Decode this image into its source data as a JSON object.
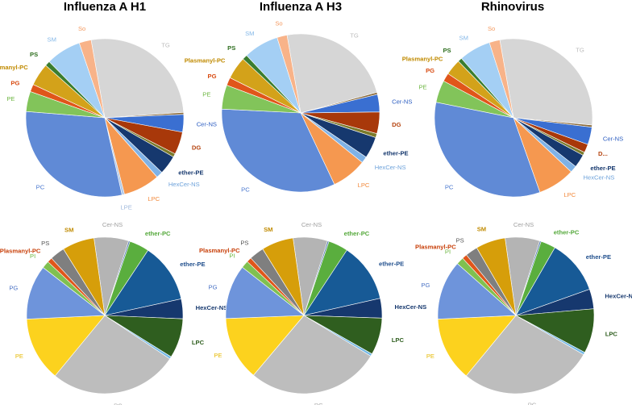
{
  "figure": {
    "column_titles": [
      "Influenza A H1",
      "Influenza A H3",
      "Rhinovirus"
    ]
  },
  "chart_data": [
    {
      "type": "pie",
      "title": "Influenza A H1",
      "row": "top",
      "slices": [
        {
          "label": "TG",
          "value": 26.0,
          "color": "#d6d6d6",
          "text_color": "#bdbdbd",
          "bold": false
        },
        {
          "label": "",
          "value": 0.4,
          "color": "#8a6a3a",
          "text_color": "#8a6a3a",
          "bold": false
        },
        {
          "label": "Cer-NS",
          "value": 3.5,
          "color": "#3a6fd1",
          "text_color": "#2e5fc2",
          "bold": false
        },
        {
          "label": "DG",
          "value": 4.5,
          "color": "#a8380a",
          "text_color": "#b5430e",
          "bold": true
        },
        {
          "label": "",
          "value": 0.7,
          "color": "#7a7a2a",
          "text_color": "#7a7a2a",
          "bold": false
        },
        {
          "label": "ether-PE",
          "value": 3.8,
          "color": "#16386e",
          "text_color": "#16386e",
          "bold": true
        },
        {
          "label": "HexCer-NS",
          "value": 1.3,
          "color": "#7fb2e6",
          "text_color": "#6fa3db",
          "bold": false
        },
        {
          "label": "LPC",
          "value": 7.3,
          "color": "#f59850",
          "text_color": "#f28a3c",
          "bold": false
        },
        {
          "label": "LPE",
          "value": 0.5,
          "color": "#b0c8e8",
          "text_color": "#9fb8dc",
          "bold": false
        },
        {
          "label": "PC",
          "value": 29.0,
          "color": "#608ad6",
          "text_color": "#4a78cf",
          "bold": false
        },
        {
          "label": "PE",
          "value": 4.0,
          "color": "#82c45a",
          "text_color": "#6cb640",
          "bold": false
        },
        {
          "label": "PG",
          "value": 1.5,
          "color": "#e0561a",
          "text_color": "#d84a10",
          "bold": true
        },
        {
          "label": "Plasmanyl-PC",
          "value": 4.5,
          "color": "#d3a21a",
          "text_color": "#c08a00",
          "bold": true
        },
        {
          "label": "PS",
          "value": 1.0,
          "color": "#3a7d30",
          "text_color": "#2e6e1f",
          "bold": true
        },
        {
          "label": "SM",
          "value": 7.0,
          "color": "#a4cff4",
          "text_color": "#84b8e8",
          "bold": false
        },
        {
          "label": "So",
          "value": 2.4,
          "color": "#f8b389",
          "text_color": "#f49a60",
          "bold": false
        }
      ]
    },
    {
      "type": "pie",
      "title": "Influenza A H3",
      "row": "top",
      "slices": [
        {
          "label": "TG",
          "value": 23.0,
          "color": "#d6d6d6",
          "text_color": "#bdbdbd",
          "bold": false
        },
        {
          "label": "",
          "value": 0.4,
          "color": "#8a6a3a",
          "text_color": "#8a6a3a",
          "bold": false
        },
        {
          "label": "Cer-NS",
          "value": 3.5,
          "color": "#3a6fd1",
          "text_color": "#2e5fc2",
          "bold": false
        },
        {
          "label": "DG",
          "value": 4.3,
          "color": "#a8380a",
          "text_color": "#b5430e",
          "bold": true
        },
        {
          "label": "",
          "value": 0.8,
          "color": "#7a7a2a",
          "text_color": "#7a7a2a",
          "bold": false
        },
        {
          "label": "ether-PE",
          "value": 4.3,
          "color": "#16386e",
          "text_color": "#16386e",
          "bold": true
        },
        {
          "label": "HexCer-NS",
          "value": 1.3,
          "color": "#7fb2e6",
          "text_color": "#6fa3db",
          "bold": false
        },
        {
          "label": "LPC",
          "value": 7.0,
          "color": "#f59850",
          "text_color": "#f28a3c",
          "bold": false
        },
        {
          "label": "PC",
          "value": 32.0,
          "color": "#608ad6",
          "text_color": "#4a78cf",
          "bold": false
        },
        {
          "label": "PE",
          "value": 4.8,
          "color": "#82c45a",
          "text_color": "#6cb640",
          "bold": false
        },
        {
          "label": "PG",
          "value": 1.6,
          "color": "#e0561a",
          "text_color": "#d84a10",
          "bold": true
        },
        {
          "label": "Plasmanyl-PC",
          "value": 4.5,
          "color": "#d3a21a",
          "text_color": "#c08a00",
          "bold": true
        },
        {
          "label": "PS",
          "value": 1.0,
          "color": "#3a7d30",
          "text_color": "#2e6e1f",
          "bold": true
        },
        {
          "label": "SM",
          "value": 7.0,
          "color": "#a4cff4",
          "text_color": "#84b8e8",
          "bold": false
        },
        {
          "label": "So",
          "value": 2.0,
          "color": "#f8b389",
          "text_color": "#f49a60",
          "bold": false
        }
      ]
    },
    {
      "type": "pie",
      "title": "Rhinovirus",
      "row": "top",
      "slices": [
        {
          "label": "TG",
          "value": 27.0,
          "color": "#d6d6d6",
          "text_color": "#bdbdbd",
          "bold": false
        },
        {
          "label": "",
          "value": 0.4,
          "color": "#8a6a3a",
          "text_color": "#8a6a3a",
          "bold": false
        },
        {
          "label": "Cer-NS",
          "value": 3.3,
          "color": "#3a6fd1",
          "text_color": "#2e5fc2",
          "bold": false
        },
        {
          "label": "D...",
          "value": 1.6,
          "color": "#a8380a",
          "text_color": "#b5430e",
          "bold": true
        },
        {
          "label": "",
          "value": 0.6,
          "color": "#7a7a2a",
          "text_color": "#7a7a2a",
          "bold": false
        },
        {
          "label": "ether-PE",
          "value": 2.5,
          "color": "#16386e",
          "text_color": "#16386e",
          "bold": true
        },
        {
          "label": "HexCer-NS",
          "value": 1.3,
          "color": "#7fb2e6",
          "text_color": "#6fa3db",
          "bold": false
        },
        {
          "label": "LPC",
          "value": 7.0,
          "color": "#f59850",
          "text_color": "#f28a3c",
          "bold": false
        },
        {
          "label": "PC",
          "value": 31.0,
          "color": "#608ad6",
          "text_color": "#4a78cf",
          "bold": false
        },
        {
          "label": "PE",
          "value": 4.2,
          "color": "#82c45a",
          "text_color": "#6cb640",
          "bold": false
        },
        {
          "label": "PG",
          "value": 1.6,
          "color": "#e0561a",
          "text_color": "#d84a10",
          "bold": true
        },
        {
          "label": "Plasmanyl-PC",
          "value": 3.0,
          "color": "#d3a21a",
          "text_color": "#c08a00",
          "bold": true
        },
        {
          "label": "PS",
          "value": 0.8,
          "color": "#3a7d30",
          "text_color": "#2e6e1f",
          "bold": true
        },
        {
          "label": "SM",
          "value": 6.0,
          "color": "#a4cff4",
          "text_color": "#84b8e8",
          "bold": false
        },
        {
          "label": "So",
          "value": 2.0,
          "color": "#f8b389",
          "text_color": "#f49a60",
          "bold": false
        }
      ]
    },
    {
      "type": "pie",
      "title": "Influenza A H1",
      "row": "bottom",
      "slices": [
        {
          "label": "Cer-NS",
          "value": 7.0,
          "color": "#b4b4b4",
          "text_color": "#a0a0a0",
          "bold": false
        },
        {
          "label": "",
          "value": 0.3,
          "color": "#5a7fb4",
          "text_color": "#5a7fb4",
          "bold": false
        },
        {
          "label": "ether-PC",
          "value": 4.0,
          "color": "#5aae3e",
          "text_color": "#54a83a",
          "bold": true
        },
        {
          "label": "ether-PE",
          "value": 12.0,
          "color": "#175a96",
          "text_color": "#1f4e8c",
          "bold": true
        },
        {
          "label": "HexCer-NS",
          "value": 4.0,
          "color": "#16386e",
          "text_color": "#16386e",
          "bold": true
        },
        {
          "label": "LPC",
          "value": 8.0,
          "color": "#2f5e1f",
          "text_color": "#2f5e1f",
          "bold": true
        },
        {
          "label": "",
          "value": 0.5,
          "color": "#72b8e6",
          "text_color": "#72b8e6",
          "bold": false
        },
        {
          "label": "PC",
          "value": 26.0,
          "color": "#bdbdbd",
          "text_color": "#a8a8a8",
          "bold": false
        },
        {
          "label": "PE",
          "value": 13.0,
          "color": "#fcd21e",
          "text_color": "#e6b800",
          "bold": false
        },
        {
          "label": "PG",
          "value": 11.0,
          "color": "#6e94db",
          "text_color": "#4a72c4",
          "bold": false
        },
        {
          "label": "PI",
          "value": 1.5,
          "color": "#80c050",
          "text_color": "#6cb640",
          "bold": false
        },
        {
          "label": "Plasmanyl-PC",
          "value": 1.0,
          "color": "#e0561a",
          "text_color": "#c8400a",
          "bold": true
        },
        {
          "label": "PS",
          "value": 3.0,
          "color": "#7f7f7f",
          "text_color": "#555555",
          "bold": false
        },
        {
          "label": "SM",
          "value": 6.5,
          "color": "#d69e0a",
          "text_color": "#c08a00",
          "bold": true
        }
      ]
    },
    {
      "type": "pie",
      "title": "Influenza A H3",
      "row": "bottom",
      "slices": [
        {
          "label": "Cer-NS",
          "value": 7.0,
          "color": "#b4b4b4",
          "text_color": "#a0a0a0",
          "bold": false
        },
        {
          "label": "",
          "value": 0.3,
          "color": "#5a7fb4",
          "text_color": "#5a7fb4",
          "bold": false
        },
        {
          "label": "ether-PC",
          "value": 4.0,
          "color": "#5aae3e",
          "text_color": "#54a83a",
          "bold": true
        },
        {
          "label": "ether-PE",
          "value": 12.0,
          "color": "#175a96",
          "text_color": "#1f4e8c",
          "bold": true
        },
        {
          "label": "HexCer-NS",
          "value": 4.0,
          "color": "#16386e",
          "text_color": "#16386e",
          "bold": true
        },
        {
          "label": "LPC",
          "value": 7.5,
          "color": "#2f5e1f",
          "text_color": "#2f5e1f",
          "bold": true
        },
        {
          "label": "",
          "value": 0.5,
          "color": "#72b8e6",
          "text_color": "#72b8e6",
          "bold": false
        },
        {
          "label": "PC",
          "value": 27.0,
          "color": "#bdbdbd",
          "text_color": "#a8a8a8",
          "bold": false
        },
        {
          "label": "PE",
          "value": 13.0,
          "color": "#fcd21e",
          "text_color": "#e6b800",
          "bold": false
        },
        {
          "label": "PG",
          "value": 11.0,
          "color": "#6e94db",
          "text_color": "#4a72c4",
          "bold": false
        },
        {
          "label": "PI",
          "value": 1.5,
          "color": "#80c050",
          "text_color": "#6cb640",
          "bold": false
        },
        {
          "label": "Plasmanyl-PC",
          "value": 1.0,
          "color": "#e0561a",
          "text_color": "#c8400a",
          "bold": true
        },
        {
          "label": "PS",
          "value": 3.0,
          "color": "#7f7f7f",
          "text_color": "#555555",
          "bold": false
        },
        {
          "label": "SM",
          "value": 6.5,
          "color": "#d69e0a",
          "text_color": "#c08a00",
          "bold": true
        }
      ]
    },
    {
      "type": "pie",
      "title": "Rhinovirus",
      "row": "bottom",
      "slices": [
        {
          "label": "Cer-NS",
          "value": 7.0,
          "color": "#b4b4b4",
          "text_color": "#a0a0a0",
          "bold": false
        },
        {
          "label": "",
          "value": 0.3,
          "color": "#5a7fb4",
          "text_color": "#5a7fb4",
          "bold": false
        },
        {
          "label": "ether-PC",
          "value": 3.0,
          "color": "#5aae3e",
          "text_color": "#54a83a",
          "bold": true
        },
        {
          "label": "ether-PE",
          "value": 11.0,
          "color": "#175a96",
          "text_color": "#1f4e8c",
          "bold": true
        },
        {
          "label": "HexCer-NS",
          "value": 4.0,
          "color": "#16386e",
          "text_color": "#16386e",
          "bold": true
        },
        {
          "label": "LPC",
          "value": 9.0,
          "color": "#2f5e1f",
          "text_color": "#2f5e1f",
          "bold": true
        },
        {
          "label": "",
          "value": 0.5,
          "color": "#72b8e6",
          "text_color": "#72b8e6",
          "bold": false
        },
        {
          "label": "PC",
          "value": 27.0,
          "color": "#bdbdbd",
          "text_color": "#a8a8a8",
          "bold": false
        },
        {
          "label": "PE",
          "value": 13.0,
          "color": "#fcd21e",
          "text_color": "#e6b800",
          "bold": false
        },
        {
          "label": "PG",
          "value": 12.0,
          "color": "#6e94db",
          "text_color": "#4a72c4",
          "bold": false
        },
        {
          "label": "PI",
          "value": 1.5,
          "color": "#80c050",
          "text_color": "#6cb640",
          "bold": false
        },
        {
          "label": "Plasmanyl-PC",
          "value": 1.0,
          "color": "#e0561a",
          "text_color": "#c8400a",
          "bold": true
        },
        {
          "label": "PS",
          "value": 2.5,
          "color": "#7f7f7f",
          "text_color": "#555555",
          "bold": false
        },
        {
          "label": "SM",
          "value": 6.0,
          "color": "#d69e0a",
          "text_color": "#c08a00",
          "bold": true
        }
      ]
    }
  ]
}
